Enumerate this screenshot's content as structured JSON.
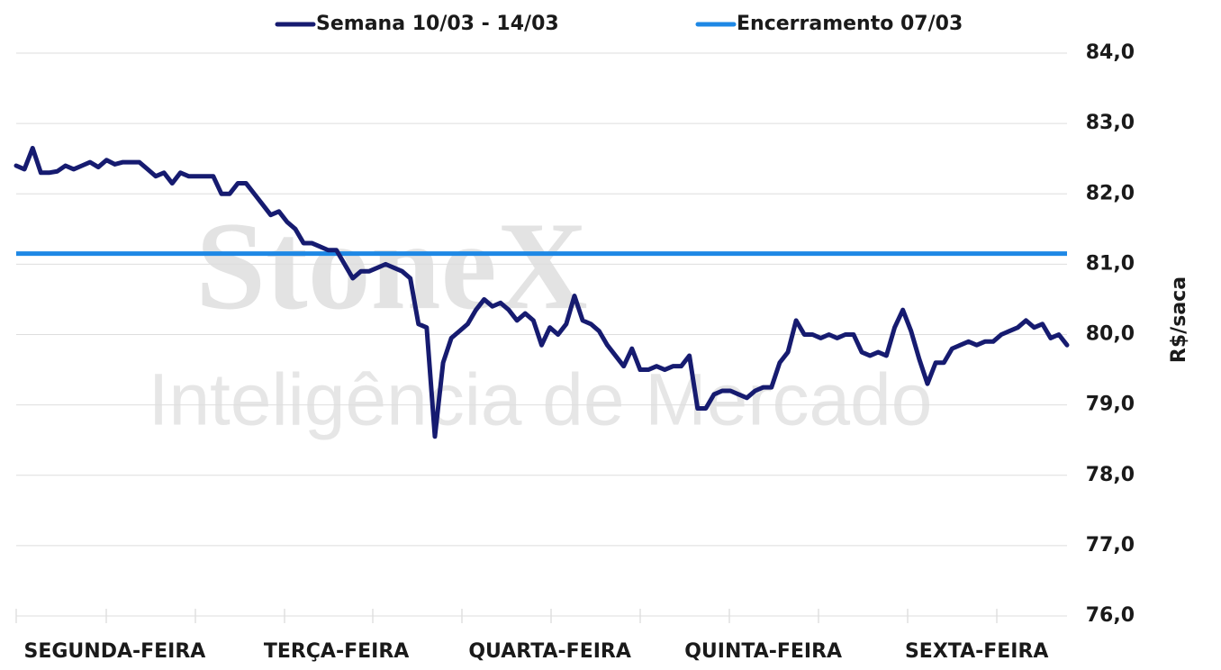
{
  "chart_data": {
    "type": "line",
    "watermark_title": "StoneX",
    "watermark_subtitle": "Inteligência de Mercado",
    "y_label": "R$/saca",
    "categories": [
      null,
      null,
      null,
      null,
      null,
      null,
      null,
      null,
      null,
      null,
      null,
      null,
      "SEGUNDA-FEIRA",
      null,
      null,
      null,
      null,
      null,
      null,
      null,
      null,
      null,
      null,
      null,
      null,
      null,
      null,
      null,
      null,
      null,
      null,
      null,
      null,
      null,
      null,
      null,
      null,
      null,
      null,
      "TERÇA-FEIRA",
      null,
      null,
      null,
      null,
      null,
      null,
      null,
      null,
      null,
      null,
      null,
      null,
      null,
      null,
      null,
      null,
      null,
      null,
      null,
      null,
      null,
      null,
      null,
      null,
      null,
      "QUARTA-FEIRA",
      null,
      null,
      null,
      null,
      null,
      null,
      null,
      null,
      null,
      null,
      null,
      null,
      null,
      null,
      null,
      null,
      null,
      null,
      null,
      null,
      null,
      null,
      null,
      null,
      null,
      "QUINTA-FEIRA",
      null,
      null,
      null,
      null,
      null,
      null,
      null,
      null,
      null,
      null,
      null,
      null,
      null,
      null,
      null,
      null,
      null,
      null,
      null,
      null,
      null,
      null,
      null,
      null,
      null,
      "SEXTA-FEIRA",
      null,
      null,
      null,
      null,
      null,
      null,
      null,
      null,
      null,
      null,
      null
    ],
    "series": [
      {
        "name": "Semana 10/03 - 14/03",
        "color": "#161b70",
        "values": [
          82.4,
          82.35,
          82.65,
          82.3,
          82.3,
          82.32,
          82.4,
          82.35,
          82.4,
          82.45,
          82.38,
          82.48,
          82.42,
          82.45,
          82.45,
          82.45,
          82.35,
          82.25,
          82.3,
          82.15,
          82.3,
          82.25,
          82.25,
          82.25,
          82.25,
          82.0,
          82.0,
          82.15,
          82.15,
          82.0,
          81.85,
          81.7,
          81.75,
          81.6,
          81.5,
          81.3,
          81.3,
          81.25,
          81.2,
          81.2,
          81.0,
          80.8,
          80.9,
          80.9,
          80.95,
          81.0,
          80.95,
          80.9,
          80.8,
          80.15,
          80.1,
          78.55,
          79.6,
          79.95,
          80.05,
          80.15,
          80.35,
          80.5,
          80.4,
          80.45,
          80.35,
          80.2,
          80.3,
          80.2,
          79.85,
          80.1,
          80.0,
          80.15,
          80.55,
          80.2,
          80.15,
          80.05,
          79.85,
          79.7,
          79.55,
          79.8,
          79.5,
          79.5,
          79.55,
          79.5,
          79.55,
          79.55,
          79.7,
          78.95,
          78.95,
          79.15,
          79.2,
          79.2,
          79.15,
          79.1,
          79.2,
          79.25,
          79.25,
          79.6,
          79.75,
          80.2,
          80.0,
          80.0,
          79.95,
          80.0,
          79.95,
          80.0,
          80.0,
          79.75,
          79.7,
          79.75,
          79.7,
          80.1,
          80.35,
          80.05,
          79.65,
          79.3,
          79.6,
          79.6,
          79.8,
          79.85,
          79.9,
          79.85,
          79.9,
          79.9,
          80.0,
          80.05,
          80.1,
          80.2,
          80.1,
          80.15,
          79.95,
          80.0,
          79.85
        ]
      }
    ],
    "hlines": [
      {
        "name": "Encerramento 07/03",
        "color": "#1e88e5",
        "value": 81.15
      }
    ],
    "ylim": [
      76,
      84
    ],
    "yticks": [
      {
        "value": 76,
        "label": "76,0"
      },
      {
        "value": 77,
        "label": "77,0"
      },
      {
        "value": 78,
        "label": "78,0"
      },
      {
        "value": 79,
        "label": "79,0"
      },
      {
        "value": 80,
        "label": "80,0"
      },
      {
        "value": 81,
        "label": "81,0"
      },
      {
        "value": 82,
        "label": "82,0"
      },
      {
        "value": 83,
        "label": "83,0"
      },
      {
        "value": 84,
        "label": "84,0"
      }
    ],
    "grid": true
  }
}
